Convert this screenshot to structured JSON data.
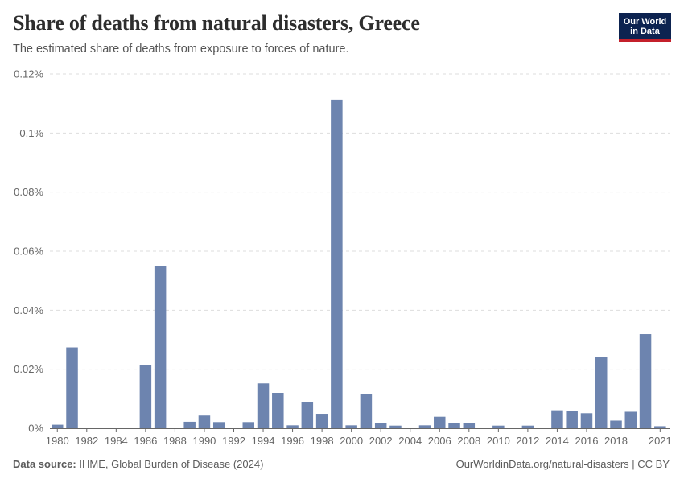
{
  "header": {
    "title": "Share of deaths from natural disasters, Greece",
    "subtitle": "The estimated share of deaths from exposure to forces of nature."
  },
  "logo": {
    "line1": "Our World",
    "line2": "in Data"
  },
  "footer": {
    "source_label": "Data source:",
    "source_text": "IHME, Global Burden of Disease (2024)",
    "url": "OurWorldinData.org/natural-disasters | CC BY"
  },
  "colors": {
    "bar": "#6d84af",
    "grid": "#dddddd",
    "axis": "#666666"
  },
  "chart_data": {
    "type": "bar",
    "title": "Share of deaths from natural disasters, Greece",
    "xlabel": "",
    "ylabel": "",
    "ylim": [
      0,
      0.12
    ],
    "y_ticks": [
      0,
      0.02,
      0.04,
      0.06,
      0.08,
      0.1,
      0.12
    ],
    "y_tick_labels": [
      "0%",
      "0.02%",
      "0.04%",
      "0.06%",
      "0.08%",
      "0.1%",
      "0.12%"
    ],
    "x_tick_labels": [
      "1980",
      "1982",
      "1984",
      "1986",
      "1988",
      "1990",
      "1992",
      "1994",
      "1996",
      "1998",
      "2000",
      "2002",
      "2004",
      "2006",
      "2008",
      "2010",
      "2012",
      "2014",
      "2016",
      "2018",
      "2021"
    ],
    "x_tick_years": [
      1980,
      1982,
      1984,
      1986,
      1988,
      1990,
      1992,
      1994,
      1996,
      1998,
      2000,
      2002,
      2004,
      2006,
      2008,
      2010,
      2012,
      2014,
      2016,
      2018,
      2021
    ],
    "categories": [
      1980,
      1981,
      1982,
      1983,
      1984,
      1985,
      1986,
      1987,
      1988,
      1989,
      1990,
      1991,
      1992,
      1993,
      1994,
      1995,
      1996,
      1997,
      1998,
      1999,
      2000,
      2001,
      2002,
      2003,
      2004,
      2005,
      2006,
      2007,
      2008,
      2009,
      2010,
      2011,
      2012,
      2013,
      2014,
      2015,
      2016,
      2017,
      2018,
      2019,
      2020,
      2021
    ],
    "values": [
      0.0012,
      0.0274,
      0,
      0,
      0,
      0,
      0.0214,
      0.055,
      0,
      0.0022,
      0.0043,
      0.0021,
      0,
      0.0021,
      0.0152,
      0.012,
      0.001,
      0.009,
      0.0049,
      0.1113,
      0.001,
      0.0116,
      0.0019,
      0.0009,
      0,
      0.001,
      0.0039,
      0.0018,
      0.0019,
      0,
      0.0009,
      0,
      0.0009,
      0,
      0.0061,
      0.006,
      0.0051,
      0.024,
      0.0026,
      0.0056,
      0.0319,
      0.0007
    ]
  }
}
